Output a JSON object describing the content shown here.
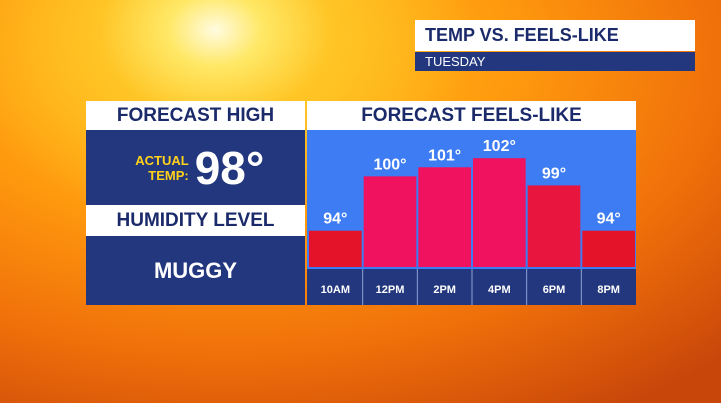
{
  "header": {
    "title": "TEMP VS. FEELS-LIKE",
    "subtitle": "TUESDAY"
  },
  "left_panel": {
    "title": "FORECAST HIGH",
    "actual_label": "ACTUAL TEMP:",
    "actual_temp": "98°",
    "humidity_title": "HUMIDITY LEVEL",
    "humidity_value": "MUGGY"
  },
  "chart_data": {
    "type": "bar",
    "title": "FORECAST FEELS-LIKE",
    "categories": [
      "10AM",
      "12PM",
      "2PM",
      "4PM",
      "6PM",
      "8PM"
    ],
    "values": [
      94,
      100,
      101,
      102,
      99,
      94
    ],
    "value_labels": [
      "94°",
      "100°",
      "101°",
      "102°",
      "99°",
      "94°"
    ],
    "colors": [
      "#e5132a",
      "#f0125e",
      "#f0125e",
      "#f0125e",
      "#e8163f",
      "#e5132a"
    ],
    "ylim": [
      90,
      105
    ]
  }
}
